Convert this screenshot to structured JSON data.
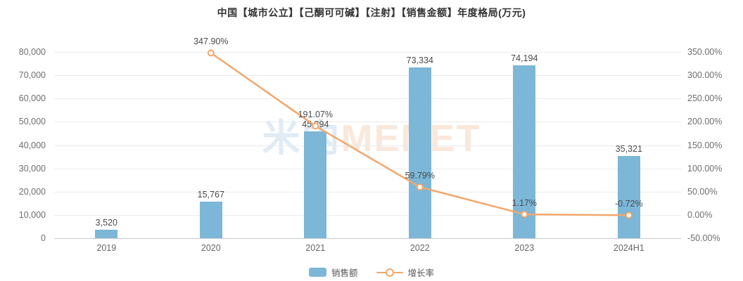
{
  "title": "中国【城市公立】【己酮可可碱】【注射】【销售金额】年度格局(万元)",
  "watermark": {
    "text_cn": "米内",
    "text_en": "MENET"
  },
  "colors": {
    "bar": "#7cb7d7",
    "line": "#f2a76b",
    "marker_fill": "#ffffff",
    "grid": "#ebebee",
    "axis_line": "#c9c9ce",
    "label_text": "#4a4a4a",
    "tick_text": "#6e6e6e",
    "watermark_cn": "#e0ebf4",
    "watermark_en": "#fae8db"
  },
  "legend": {
    "sales_label": "销售额",
    "growth_label": "增长率"
  },
  "chart_data": {
    "type": "bar+line",
    "title": "中国【城市公立】【己酮可可碱】【注射】【销售金额】年度格局(万元)",
    "categories": [
      "2019",
      "2020",
      "2021",
      "2022",
      "2023",
      "2024H1"
    ],
    "series": [
      {
        "name": "销售额",
        "type": "bar",
        "yaxis": "left",
        "values": [
          3520,
          15767,
          45894,
          73334,
          74194,
          35321
        ],
        "labels": [
          "3,520",
          "15,767",
          "45,894",
          "73,334",
          "74,194",
          "35,321"
        ]
      },
      {
        "name": "增长率",
        "type": "line",
        "yaxis": "right",
        "values": [
          null,
          347.9,
          191.07,
          59.79,
          1.17,
          -0.72
        ],
        "labels": [
          null,
          "347.90%",
          "191.07%",
          "59.79%",
          "1.17%",
          "-0.72%"
        ]
      }
    ],
    "left_axis": {
      "min": 0,
      "max": 80000,
      "tick_labels": [
        "80,000",
        "70,000",
        "60,000",
        "50,000",
        "40,000",
        "30,000",
        "20,000",
        "10,000",
        "0"
      ]
    },
    "right_axis": {
      "min": -50,
      "max": 350,
      "tick_labels": [
        "350.00%",
        "300.00%",
        "250.00%",
        "200.00%",
        "150.00%",
        "100.00%",
        "50.00%",
        "0.00%",
        "-50.00%"
      ]
    },
    "grid": true,
    "legend_position": "bottom"
  }
}
